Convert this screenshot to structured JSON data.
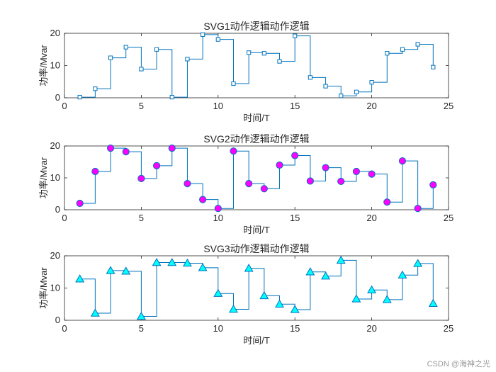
{
  "watermark": "CSDN @海神之光",
  "chart_data": [
    {
      "type": "line",
      "step": true,
      "title": "SVG1动作逻辑动作逻辑",
      "xlabel": "时间/T",
      "ylabel": "功率/Mvar",
      "xlim": [
        0,
        25
      ],
      "ylim": [
        0,
        20
      ],
      "xticks": [
        0,
        5,
        10,
        15,
        20,
        25
      ],
      "yticks": [
        0,
        10,
        20
      ],
      "marker": "square",
      "marker_color": "#ffffff",
      "line_color": "#0072bd",
      "x": [
        1,
        2,
        3,
        4,
        5,
        6,
        7,
        8,
        9,
        10,
        11,
        12,
        13,
        14,
        15,
        16,
        17,
        18,
        19,
        20,
        21,
        22,
        23,
        24
      ],
      "y": [
        0.2,
        2.8,
        12.4,
        15.7,
        8.9,
        15,
        0.2,
        12,
        19.6,
        18.1,
        4.4,
        14,
        13.8,
        11.3,
        19.2,
        6.3,
        3.6,
        0.6,
        1.8,
        4.8,
        13.8,
        15,
        16.6,
        9.5
      ]
    },
    {
      "type": "line",
      "step": true,
      "title": "SVG2动作逻辑动作逻辑",
      "xlabel": "时间/T",
      "ylabel": "功率/Mvar",
      "xlim": [
        0,
        25
      ],
      "ylim": [
        0,
        20
      ],
      "xticks": [
        0,
        5,
        10,
        15,
        20,
        25
      ],
      "yticks": [
        0,
        10,
        20
      ],
      "marker": "circle",
      "marker_color": "#ff00ff",
      "line_color": "#0072bd",
      "x": [
        1,
        2,
        3,
        4,
        5,
        6,
        7,
        8,
        9,
        10,
        11,
        12,
        13,
        14,
        15,
        16,
        17,
        18,
        19,
        20,
        21,
        22,
        23,
        24
      ],
      "y": [
        2,
        12,
        19.3,
        18.2,
        9.8,
        13.8,
        19.3,
        8.2,
        3.2,
        0.4,
        18.4,
        8.2,
        6.6,
        14,
        17,
        9,
        13.2,
        8.9,
        12,
        11.2,
        2.4,
        15.3,
        0.4,
        7.8
      ]
    },
    {
      "type": "line",
      "step": true,
      "title": "SVG3动作逻辑动作逻辑",
      "xlabel": "时间/T",
      "ylabel": "功率/Mvar",
      "xlim": [
        0,
        25
      ],
      "ylim": [
        0,
        20
      ],
      "xticks": [
        0,
        5,
        10,
        15,
        20,
        25
      ],
      "yticks": [
        0,
        10,
        20
      ],
      "marker": "triangle",
      "marker_color": "#00ffff",
      "line_color": "#0072bd",
      "x": [
        1,
        2,
        3,
        4,
        5,
        6,
        7,
        8,
        9,
        10,
        11,
        12,
        13,
        14,
        15,
        16,
        17,
        18,
        19,
        20,
        21,
        22,
        23,
        24
      ],
      "y": [
        12.8,
        2.2,
        15.4,
        15.2,
        1.2,
        17.9,
        17.9,
        17.7,
        16.3,
        8.3,
        3.4,
        16.1,
        7.6,
        5,
        3.3,
        15,
        13.7,
        18.6,
        6.6,
        9.4,
        6.4,
        14,
        17.6,
        5.2
      ]
    }
  ]
}
